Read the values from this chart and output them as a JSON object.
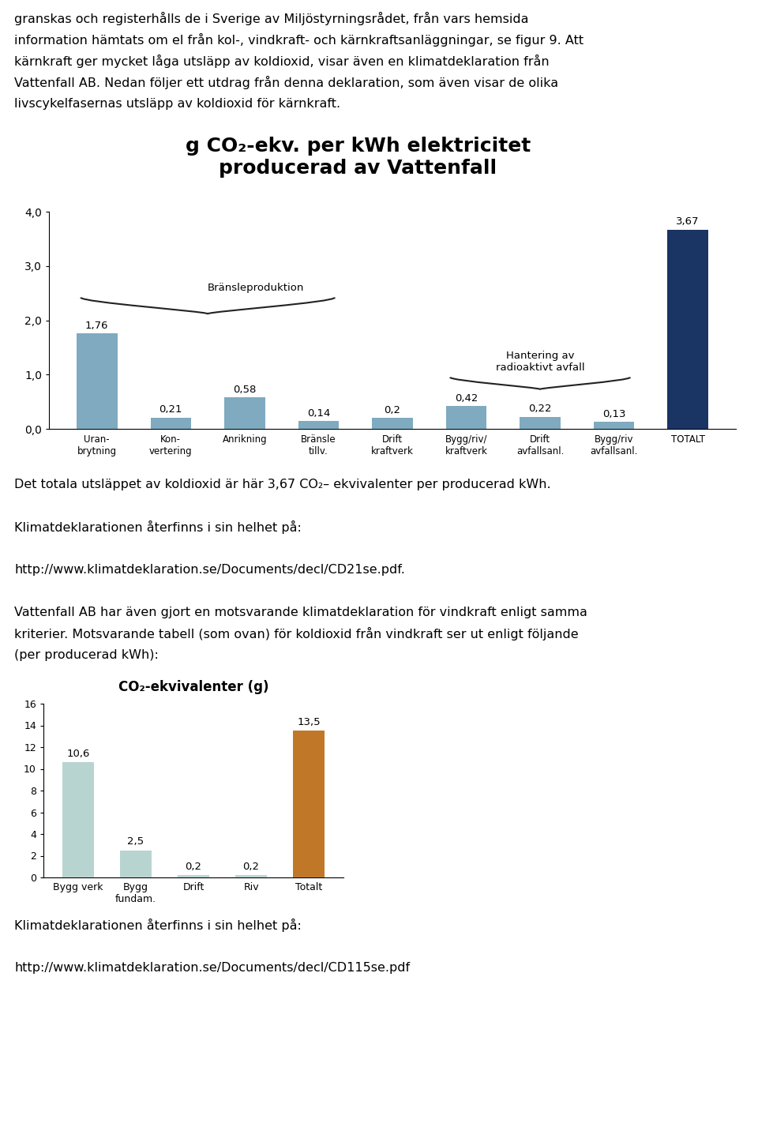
{
  "top_lines": [
    "granskas och registerhålls de i Sverige av Miljöstyrningsrådet, från vars hemsida",
    "information hämtats om el från kol-, vindkraft- och kärnkraftsanläggningar, se figur 9. Att",
    "kärnkraft ger mycket låga utsläpp av koldioxid, visar även en klimatdeklaration från",
    "Vattenfall AB. Nedan följer ett utdrag från denna deklaration, som även visar de olika",
    "livscykelfasernas utsläpp av koldioxid för kärnkraft."
  ],
  "chart1": {
    "title_line1": "g CO₂-ekv. per kWh elektricitet",
    "title_line2": "producerad av Vattenfall",
    "title_fontsize": 18,
    "categories": [
      "Uran-\nbrytning",
      "Kon-\nvertering",
      "Anrikning",
      "Bränsle\ntillv.",
      "Drift\nkraftverk",
      "Bygg/riv/\nkraftverk",
      "Drift\navfallsanl.",
      "Bygg/riv\navfallsanl.",
      "TOTALT"
    ],
    "values": [
      1.76,
      0.21,
      0.58,
      0.14,
      0.2,
      0.42,
      0.22,
      0.13,
      3.67
    ],
    "bar_colors": [
      "#7faabf",
      "#7faabf",
      "#7faabf",
      "#7faabf",
      "#7faabf",
      "#7faabf",
      "#7faabf",
      "#7faabf",
      "#1a3463"
    ],
    "ylim": [
      0,
      4.0
    ],
    "yticks": [
      0.0,
      1.0,
      2.0,
      3.0,
      4.0
    ],
    "ytick_labels": [
      "0,0",
      "1,0",
      "2,0",
      "3,0",
      "4,0"
    ],
    "brace1_label": "Bränsleproduktion",
    "brace2_label": "Hantering av\nradioaktivt avfall"
  },
  "mid_lines": [
    "Det totala utsläppet av koldioxid är här 3,67 CO₂– ekvivalenter per producerad kWh.",
    "",
    "Klimatdeklarationen återfinns i sin helhet på:",
    "",
    "http://www.klimatdeklaration.se/Documents/decl/CD21se.pdf.",
    "",
    "Vattenfall AB har även gjort en motsvarande klimatdeklaration för vindkraft enligt samma",
    "kriterier. Motsvarande tabell (som ovan) för koldioxid från vindkraft ser ut enligt följande",
    "(per producerad kWh):"
  ],
  "chart2": {
    "title": "CO₂-ekvivalenter (g)",
    "title_fontsize": 12,
    "categories": [
      "Bygg verk",
      "Bygg\nfundam.",
      "Drift",
      "Riv",
      "Totalt"
    ],
    "values": [
      10.6,
      2.5,
      0.2,
      0.2,
      13.5
    ],
    "bar_colors": [
      "#b8d4d0",
      "#b8d4d0",
      "#b8d4d0",
      "#b8d4d0",
      "#c07828"
    ],
    "ylim": [
      0,
      16
    ],
    "yticks": [
      0,
      2,
      4,
      6,
      8,
      10,
      12,
      14,
      16
    ]
  },
  "bot_lines": [
    "Klimatdeklarationen återfinns i sin helhet på:",
    "",
    "http://www.klimatdeklaration.se/Documents/decl/CD115se.pdf"
  ]
}
